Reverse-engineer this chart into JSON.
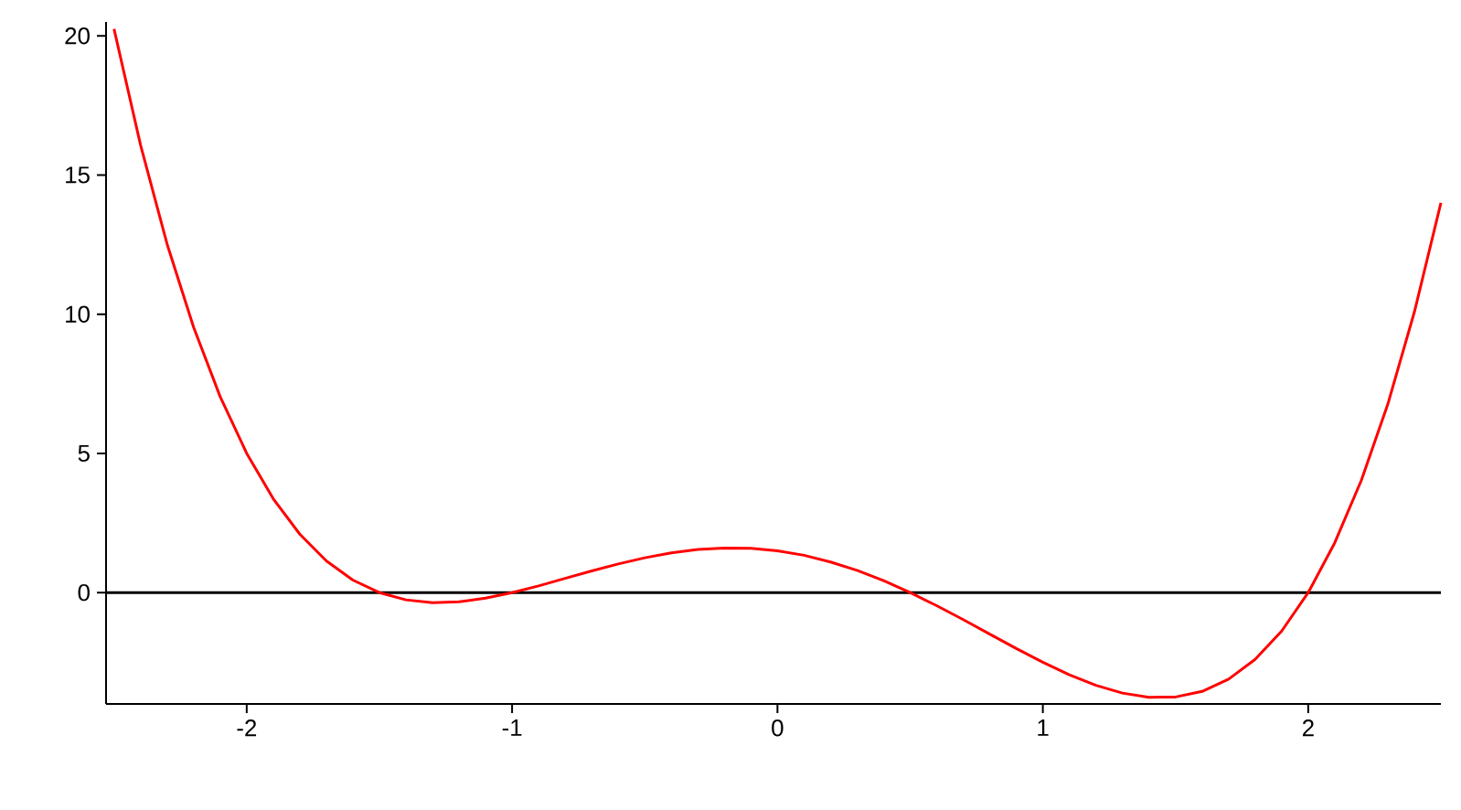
{
  "chart_data": {
    "type": "line",
    "x": [
      -2.5,
      -2.4,
      -2.3,
      -2.2,
      -2.1,
      -2.0,
      -1.9,
      -1.8,
      -1.7,
      -1.6,
      -1.5,
      -1.4,
      -1.3,
      -1.2,
      -1.1,
      -1.0,
      -0.9,
      -0.8,
      -0.7,
      -0.6,
      -0.5,
      -0.4,
      -0.3,
      -0.2,
      -0.1,
      0,
      0.1,
      0.2,
      0.3,
      0.4,
      0.5,
      0.6,
      0.7,
      0.8,
      0.9,
      1.0,
      1.1,
      1.2,
      1.3,
      1.4,
      1.5,
      1.6,
      1.7,
      1.8,
      1.9,
      2.0,
      2.1,
      2.2,
      2.3,
      2.4,
      2.5
    ],
    "series": [
      {
        "color": "#ff0000",
        "values": [
          20.25,
          16.08,
          12.52,
          9.53,
          7.04,
          5.0,
          3.37,
          2.1,
          1.14,
          0.45,
          0,
          -0.26,
          -0.36,
          -0.33,
          -0.2,
          0,
          0.24,
          0.51,
          0.78,
          1.03,
          1.25,
          1.43,
          1.55,
          1.6,
          1.59,
          1.5,
          1.34,
          1.1,
          0.8,
          0.43,
          0,
          -0.47,
          -0.97,
          -1.49,
          -2.01,
          -2.5,
          -2.95,
          -3.33,
          -3.61,
          -3.76,
          -3.75,
          -3.55,
          -3.11,
          -2.4,
          -1.38,
          0,
          1.79,
          4.03,
          6.77,
          10.08,
          14.0
        ]
      }
    ],
    "xlim": [
      -2.53,
      2.5
    ],
    "ylim": [
      -4,
      20.5
    ],
    "xticks": [
      -2,
      -1,
      0,
      1,
      2
    ],
    "yticks": [
      0,
      5,
      10,
      15,
      20
    ],
    "ref_lines": [
      {
        "axis": "y",
        "value": 0,
        "color": "#000000"
      }
    ]
  }
}
